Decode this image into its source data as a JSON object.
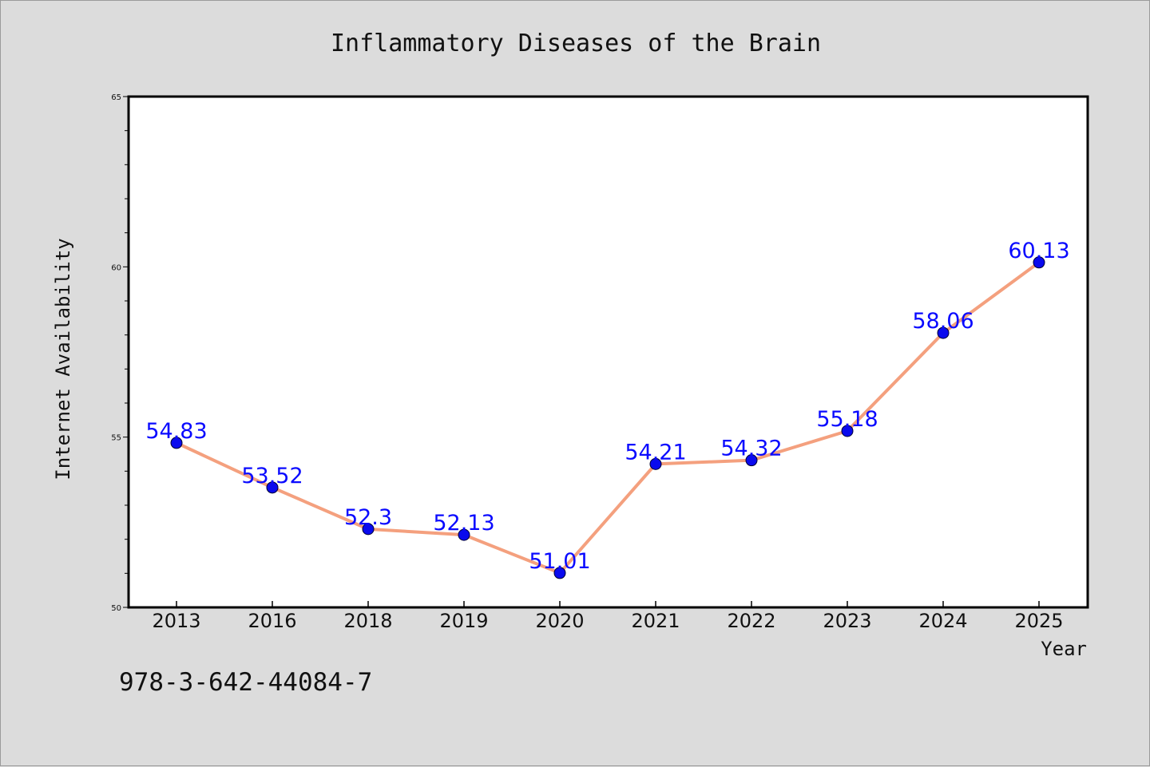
{
  "chart_data": {
    "type": "line",
    "title": "Inflammatory Diseases of the Brain",
    "xlabel": "Year",
    "ylabel": "Internet Availability",
    "categories": [
      "2013",
      "2016",
      "2018",
      "2019",
      "2020",
      "2021",
      "2022",
      "2023",
      "2024",
      "2025"
    ],
    "series": [
      {
        "values": [
          54.83,
          53.52,
          52.3,
          52.13,
          51.01,
          54.21,
          54.32,
          55.18,
          58.06,
          60.13
        ],
        "labels": [
          "54.83",
          "53.52",
          "52.3",
          "52.13",
          "51.01",
          "54.21",
          "54.32",
          "55.18",
          "58.06",
          "60.13"
        ]
      }
    ],
    "ylim": [
      50,
      65
    ],
    "yticks": [
      "50",
      "55",
      "60",
      "65"
    ],
    "grid": false,
    "legend": "none",
    "colors": {
      "line": "#f4a07e",
      "marker": "#0a0aee",
      "label": "#0a0aff",
      "background": "#dcdcdc",
      "plot_background": "#ffffff"
    }
  },
  "footnote": "978-3-642-44084-7"
}
